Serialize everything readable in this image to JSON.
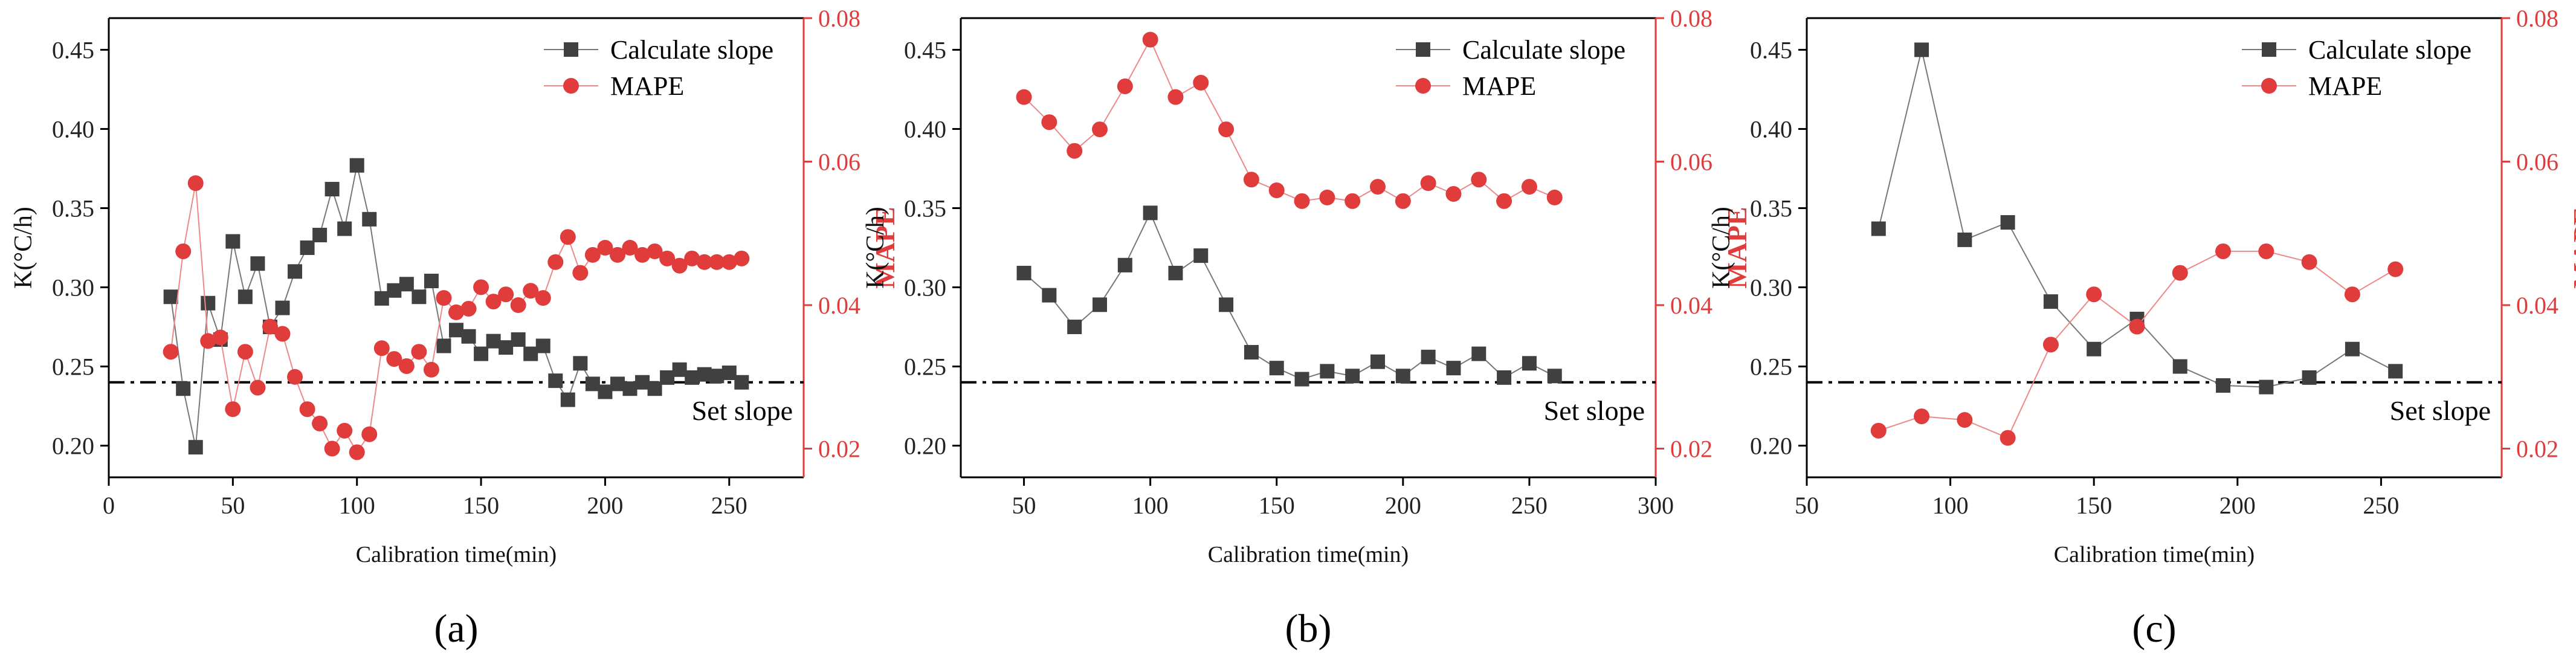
{
  "chart_data": [
    {
      "type": "line",
      "panel_label": "(a)",
      "xlabel": "Calibration time(min)",
      "ylabel": "K(°C/h)",
      "y2label": "MAPE",
      "xlim": [
        0,
        280
      ],
      "xticks": [
        0,
        50,
        100,
        150,
        200,
        250
      ],
      "ylim": [
        0.18,
        0.47
      ],
      "yticks": [
        0.2,
        0.25,
        0.3,
        0.35,
        0.4,
        0.45
      ],
      "y2lim": [
        0.016,
        0.08
      ],
      "y2ticks": [
        0.02,
        0.04,
        0.06,
        0.08
      ],
      "legend_position": "top-right",
      "reference_line": {
        "y": 0.24,
        "label": "Set slope"
      },
      "colors": {
        "slope": "#404040",
        "mape": "#e03c3c",
        "axis": "#000000",
        "mape_axis": "#e03c3c"
      },
      "series": [
        {
          "name": "Calculate slope",
          "axis": "left",
          "marker": "square",
          "x": [
            25,
            30,
            35,
            40,
            45,
            50,
            55,
            60,
            65,
            70,
            75,
            80,
            85,
            90,
            95,
            100,
            105,
            110,
            115,
            120,
            125,
            130,
            135,
            140,
            145,
            150,
            155,
            160,
            165,
            170,
            175,
            180,
            185,
            190,
            195,
            200,
            205,
            210,
            215,
            220,
            225,
            230,
            235,
            240,
            245,
            250,
            255
          ],
          "values": [
            0.294,
            0.236,
            0.199,
            0.29,
            0.267,
            0.329,
            0.294,
            0.315,
            0.275,
            0.287,
            0.31,
            0.325,
            0.333,
            0.362,
            0.337,
            0.377,
            0.343,
            0.293,
            0.298,
            0.302,
            0.294,
            0.304,
            0.263,
            0.273,
            0.269,
            0.258,
            0.266,
            0.262,
            0.267,
            0.258,
            0.263,
            0.241,
            0.229,
            0.252,
            0.239,
            0.234,
            0.239,
            0.236,
            0.24,
            0.236,
            0.243,
            0.248,
            0.243,
            0.245,
            0.244,
            0.246,
            0.24
          ]
        },
        {
          "name": "MAPE",
          "axis": "right",
          "marker": "circle",
          "x": [
            25,
            30,
            35,
            40,
            45,
            50,
            55,
            60,
            65,
            70,
            75,
            80,
            85,
            90,
            95,
            100,
            105,
            110,
            115,
            120,
            125,
            130,
            135,
            140,
            145,
            150,
            155,
            160,
            165,
            170,
            175,
            180,
            185,
            190,
            195,
            200,
            205,
            210,
            215,
            220,
            225,
            230,
            235,
            240,
            245,
            250,
            255
          ],
          "values": [
            0.0335,
            0.0475,
            0.057,
            0.035,
            0.0355,
            0.0255,
            0.0335,
            0.0285,
            0.037,
            0.036,
            0.03,
            0.0255,
            0.0235,
            0.02,
            0.0225,
            0.0195,
            0.022,
            0.034,
            0.0325,
            0.0315,
            0.0335,
            0.031,
            0.041,
            0.039,
            0.0395,
            0.0425,
            0.0405,
            0.0415,
            0.04,
            0.042,
            0.041,
            0.046,
            0.0495,
            0.0445,
            0.047,
            0.048,
            0.047,
            0.048,
            0.047,
            0.0475,
            0.0465,
            0.0455,
            0.0465,
            0.046,
            0.046,
            0.046,
            0.0465
          ]
        }
      ]
    },
    {
      "type": "line",
      "panel_label": "(b)",
      "xlabel": "Calibration time(min)",
      "ylabel": "K(°C/h)",
      "y2label": "MAPE",
      "xlim": [
        25,
        300
      ],
      "xticks": [
        50,
        100,
        150,
        200,
        250,
        300
      ],
      "ylim": [
        0.18,
        0.47
      ],
      "yticks": [
        0.2,
        0.25,
        0.3,
        0.35,
        0.4,
        0.45
      ],
      "y2lim": [
        0.016,
        0.08
      ],
      "y2ticks": [
        0.02,
        0.04,
        0.06,
        0.08
      ],
      "legend_position": "top-right",
      "reference_line": {
        "y": 0.24,
        "label": "Set slope"
      },
      "colors": {
        "slope": "#404040",
        "mape": "#e03c3c",
        "axis": "#000000",
        "mape_axis": "#e03c3c"
      },
      "series": [
        {
          "name": "Calculate slope",
          "axis": "left",
          "marker": "square",
          "x": [
            50,
            60,
            70,
            80,
            90,
            100,
            110,
            120,
            130,
            140,
            150,
            160,
            170,
            180,
            190,
            200,
            210,
            220,
            230,
            240,
            250,
            260
          ],
          "values": [
            0.309,
            0.295,
            0.275,
            0.289,
            0.314,
            0.347,
            0.309,
            0.32,
            0.289,
            0.259,
            0.249,
            0.242,
            0.247,
            0.244,
            0.253,
            0.244,
            0.256,
            0.249,
            0.258,
            0.243,
            0.252,
            0.244
          ]
        },
        {
          "name": "MAPE",
          "axis": "right",
          "marker": "circle",
          "x": [
            50,
            60,
            70,
            80,
            90,
            100,
            110,
            120,
            130,
            140,
            150,
            160,
            170,
            180,
            190,
            200,
            210,
            220,
            230,
            240,
            250,
            260
          ],
          "values": [
            0.069,
            0.0655,
            0.0615,
            0.0645,
            0.0705,
            0.077,
            0.069,
            0.071,
            0.0645,
            0.0575,
            0.056,
            0.0545,
            0.055,
            0.0545,
            0.0565,
            0.0545,
            0.057,
            0.0555,
            0.0575,
            0.0545,
            0.0565,
            0.055
          ]
        }
      ]
    },
    {
      "type": "line",
      "panel_label": "(c)",
      "xlabel": "Calibration time(min)",
      "ylabel": "K(°C/h)",
      "y2label": "MAPE",
      "xlim": [
        50,
        292
      ],
      "xticks": [
        50,
        100,
        150,
        200,
        250
      ],
      "ylim": [
        0.18,
        0.47
      ],
      "yticks": [
        0.2,
        0.25,
        0.3,
        0.35,
        0.4,
        0.45
      ],
      "y2lim": [
        0.016,
        0.08
      ],
      "y2ticks": [
        0.02,
        0.04,
        0.06,
        0.08
      ],
      "legend_position": "top-right",
      "reference_line": {
        "y": 0.24,
        "label": "Set slope"
      },
      "colors": {
        "slope": "#404040",
        "mape": "#e03c3c",
        "axis": "#000000",
        "mape_axis": "#e03c3c"
      },
      "series": [
        {
          "name": "Calculate slope",
          "axis": "left",
          "marker": "square",
          "x": [
            75,
            90,
            105,
            120,
            135,
            150,
            165,
            180,
            195,
            210,
            225,
            240,
            255
          ],
          "values": [
            0.337,
            0.45,
            0.33,
            0.341,
            0.291,
            0.261,
            0.28,
            0.25,
            0.238,
            0.237,
            0.243,
            0.261,
            0.247
          ]
        },
        {
          "name": "MAPE",
          "axis": "right",
          "marker": "circle",
          "x": [
            75,
            90,
            105,
            120,
            135,
            150,
            165,
            180,
            195,
            210,
            225,
            240,
            255
          ],
          "values": [
            0.0225,
            0.0245,
            0.024,
            0.0215,
            0.0345,
            0.0415,
            0.037,
            0.0445,
            0.0475,
            0.0475,
            0.046,
            0.0415,
            0.045
          ]
        }
      ]
    }
  ]
}
